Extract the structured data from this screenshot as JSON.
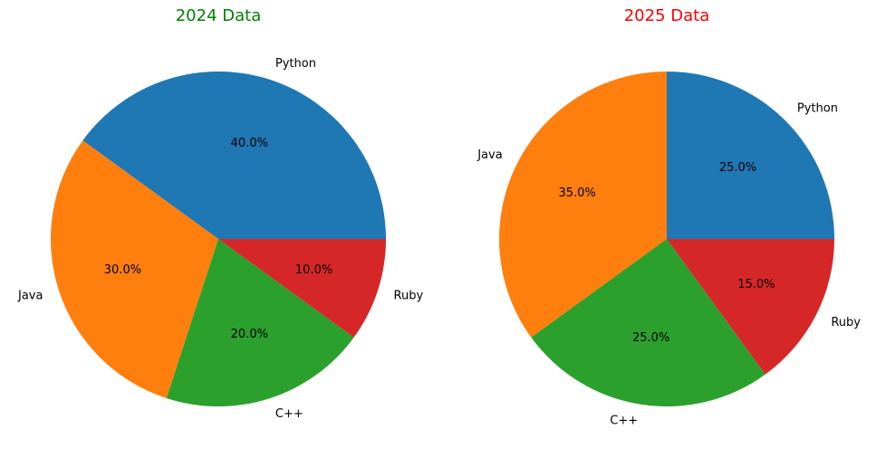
{
  "chart_data": [
    {
      "type": "pie",
      "title": "2024 Data",
      "title_color": "#008000",
      "categories": [
        "Python",
        "Java",
        "C++",
        "Ruby"
      ],
      "values": [
        40,
        30,
        20,
        10
      ],
      "value_labels": [
        "40.0%",
        "30.0%",
        "20.0%",
        "10.0%"
      ],
      "colors": [
        "#1f77b4",
        "#ff7f0e",
        "#2ca02c",
        "#d62728"
      ]
    },
    {
      "type": "pie",
      "title": "2025 Data",
      "title_color": "#ff0000",
      "categories": [
        "Python",
        "Java",
        "C++",
        "Ruby"
      ],
      "values": [
        25,
        35,
        25,
        15
      ],
      "value_labels": [
        "25.0%",
        "35.0%",
        "25.0%",
        "15.0%"
      ],
      "colors": [
        "#1f77b4",
        "#ff7f0e",
        "#2ca02c",
        "#d62728"
      ]
    }
  ]
}
